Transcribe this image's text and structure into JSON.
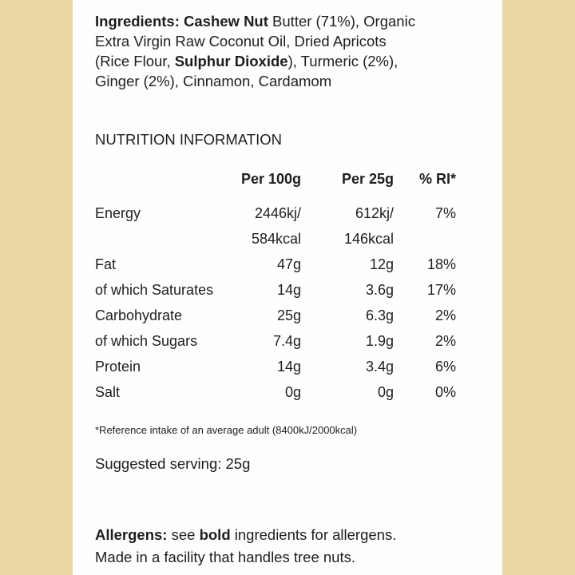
{
  "ingredients": {
    "label": "Ingredients:",
    "bold1": "Cashew Nut",
    "text1": " Butter (71%), Organic",
    "line2": "Extra Virgin Raw Coconut Oil, Dried Apricots",
    "text3a": "(Rice Flour, ",
    "bold2": "Sulphur Dioxide",
    "text3b": "), Turmeric (2%),",
    "line4": "Ginger (2%), Cinnamon, Cardamom"
  },
  "nutrition": {
    "heading": "NUTRITION INFORMATION",
    "headers": [
      "",
      "Per 100g",
      "Per 25g",
      "% RI*"
    ],
    "rows": [
      [
        "Energy",
        "2446kj/",
        "612kj/",
        "7%"
      ],
      [
        "",
        "584kcal",
        "146kcal",
        ""
      ],
      [
        "Fat",
        "47g",
        "12g",
        "18%"
      ],
      [
        "of which Saturates",
        "14g",
        "3.6g",
        "17%"
      ],
      [
        "Carbohydrate",
        "25g",
        "6.3g",
        "2%"
      ],
      [
        "of which Sugars",
        "7.4g",
        "1.9g",
        "2%"
      ],
      [
        "Protein",
        "14g",
        "3.4g",
        "6%"
      ],
      [
        "Salt",
        "0g",
        "0g",
        "0%"
      ]
    ],
    "footnote": "*Reference intake of an average adult (8400kJ/2000kcal)"
  },
  "serving": "Suggested serving: 25g",
  "allergens": {
    "label": "Allergens:",
    "text1": " see ",
    "bold": "bold",
    "text2": " ingredients for allergens.",
    "line2": "Made in a facility that handles tree nuts."
  },
  "colors": {
    "background": "#ebd9a3",
    "panel": "#fefefe",
    "text": "#1e1e1e"
  }
}
